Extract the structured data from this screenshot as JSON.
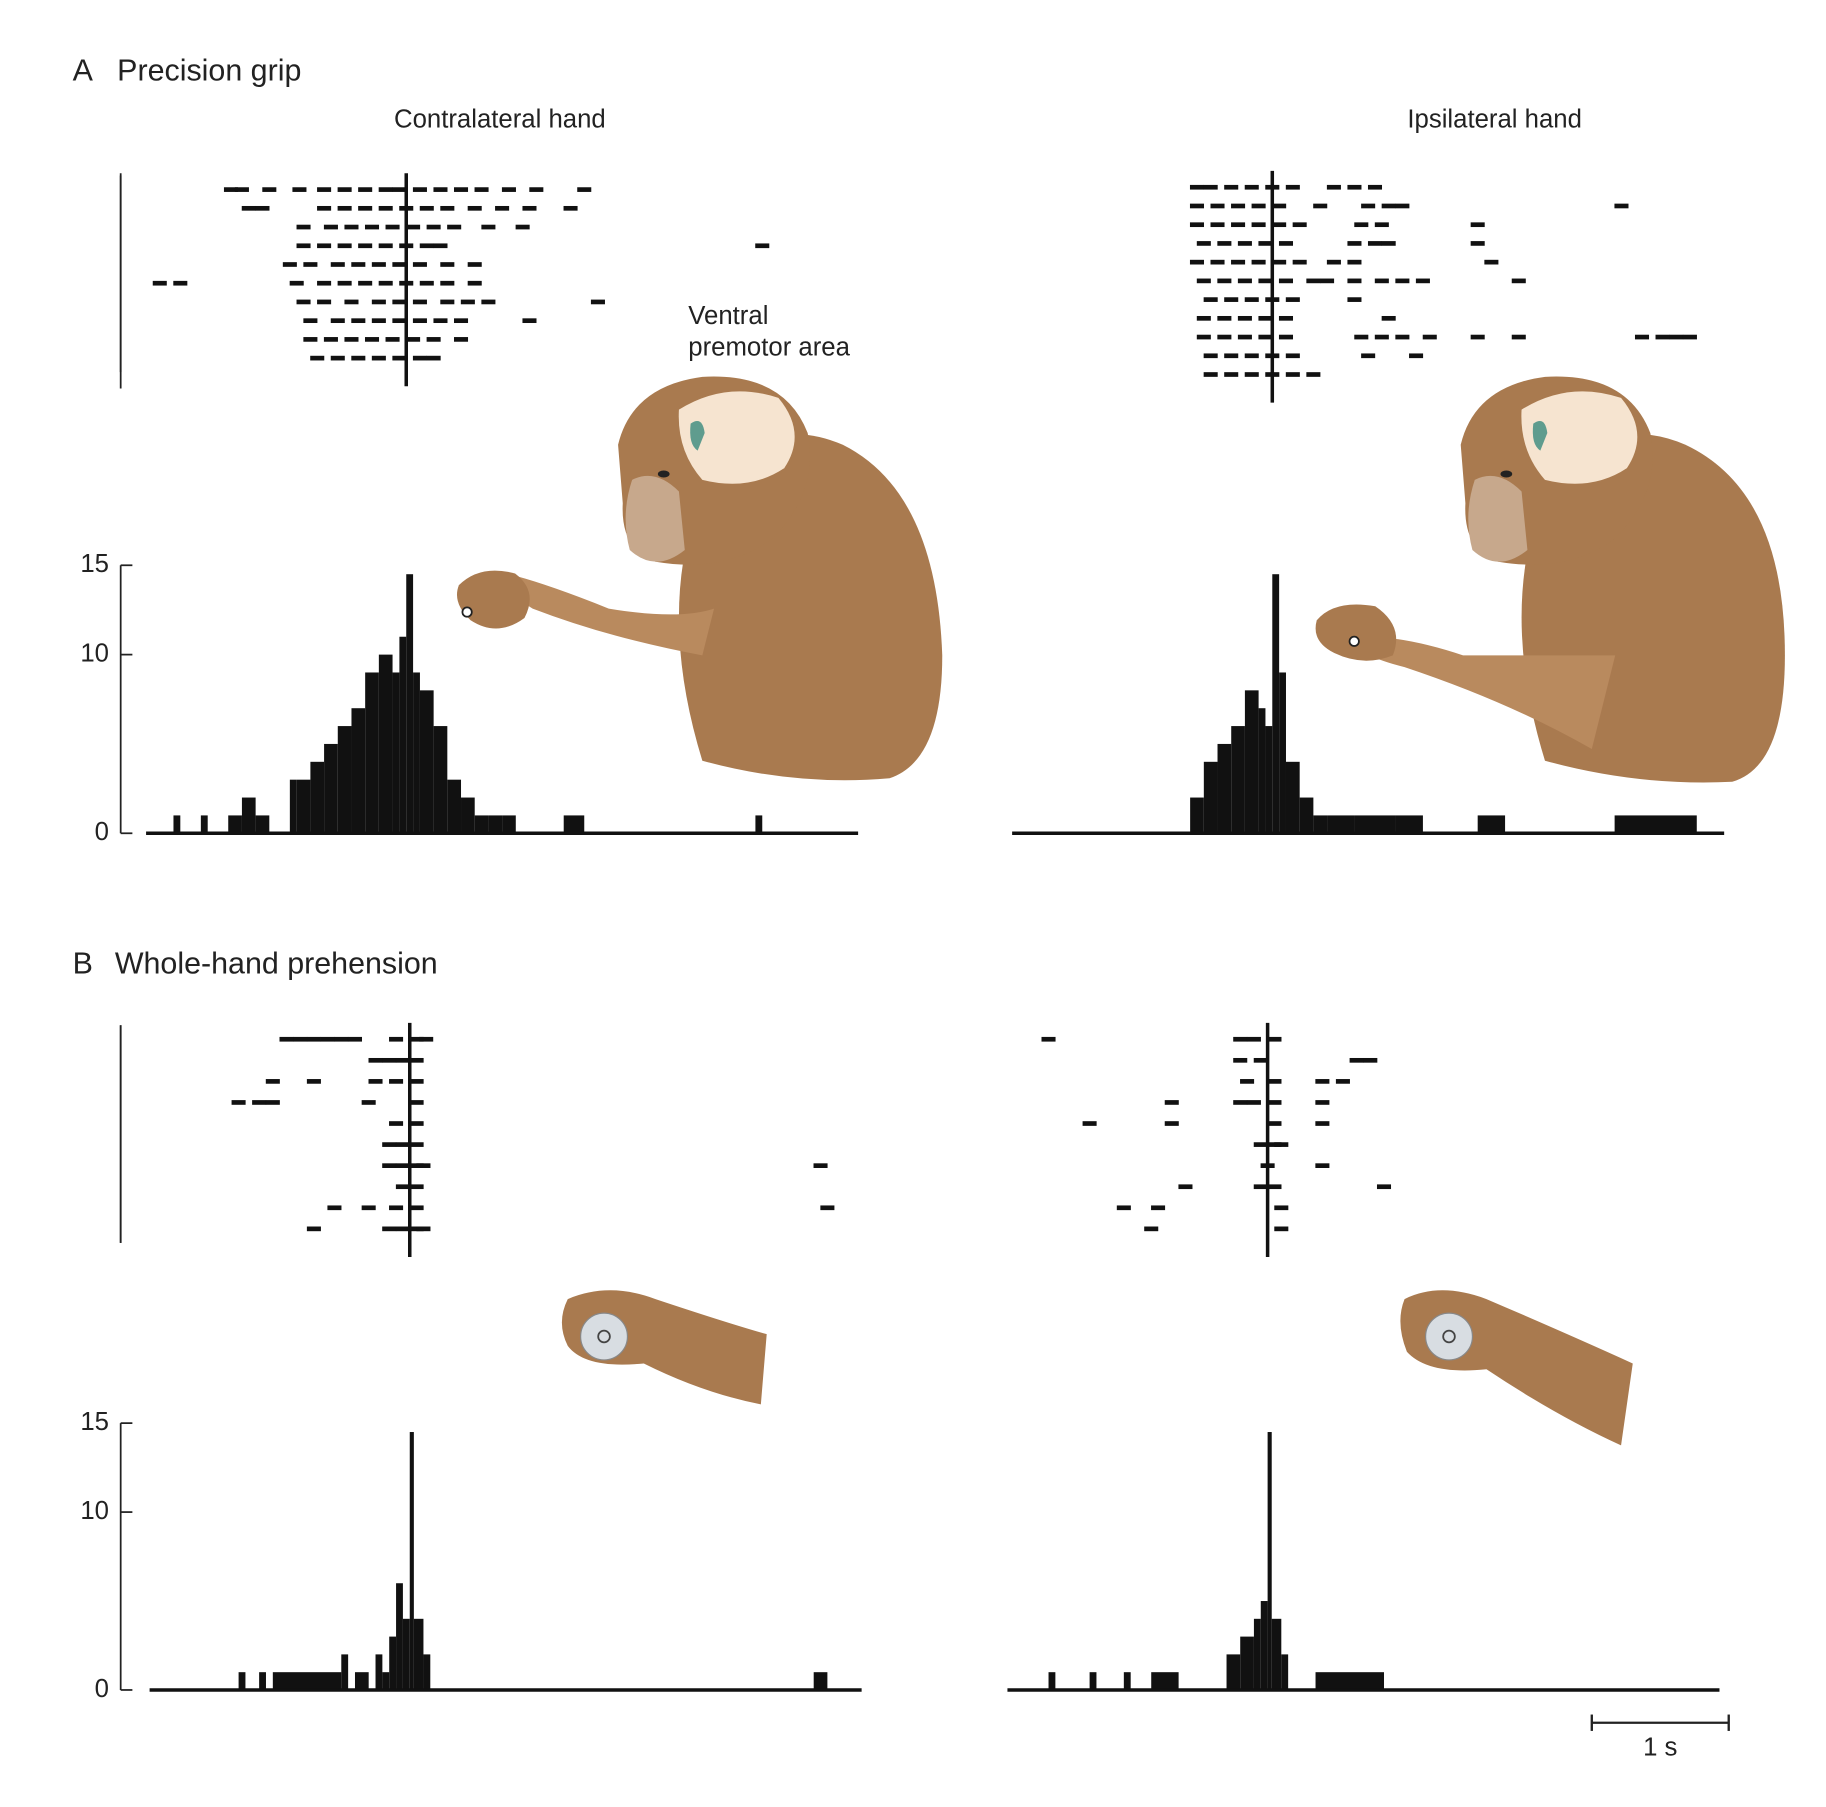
{
  "panels": [
    {
      "label": "A",
      "title": "Precision grip"
    },
    {
      "label": "B",
      "title": "Whole-hand prehension"
    }
  ],
  "columns": [
    "Contralateral hand",
    "Ipsilateral hand"
  ],
  "annotation": [
    "Ventral",
    "premotor area"
  ],
  "scale_bar": {
    "value": 1,
    "label": "1 s"
  },
  "chart_data": [
    {
      "type": "histogram",
      "color": "#111",
      "xlim": [
        -1.9,
        3.3
      ],
      "ylim": [
        0,
        15
      ],
      "yticks": [
        0,
        10,
        15
      ],
      "bins": [
        -1.9,
        -1.7,
        -1.65,
        -1.5,
        -1.45,
        -1.3,
        -1.2,
        -1.1,
        -1.0,
        -0.85,
        -0.8,
        -0.7,
        -0.6,
        -0.5,
        -0.4,
        -0.3,
        -0.2,
        -0.1,
        -0.05,
        0,
        0.05,
        0.1,
        0.2,
        0.3,
        0.4,
        0.5,
        0.6,
        0.7,
        0.8,
        0.9,
        1.0,
        1.15,
        1.3,
        1.4,
        2.55,
        2.6,
        3.3
      ],
      "values": [
        0,
        1,
        0,
        1,
        0,
        1,
        2,
        1,
        0,
        3,
        3,
        4,
        5,
        6,
        7,
        9,
        10,
        9,
        11,
        14.5,
        9,
        8,
        6,
        3,
        2,
        1,
        1,
        1,
        0,
        0,
        0,
        1,
        0,
        0,
        1,
        0
      ],
      "raster": [
        [
          -1.28,
          -1.2,
          -1.0,
          -0.78,
          -0.6,
          -0.45,
          -0.3,
          -0.15,
          -0.05,
          0.1,
          0.25,
          0.4,
          0.55,
          0.75,
          0.95,
          1.3
        ],
        [
          -1.15,
          -1.05,
          -0.6,
          -0.45,
          -0.3,
          -0.15,
          0,
          0.15,
          0.3,
          0.5,
          0.7,
          0.9,
          1.2
        ],
        [
          -0.75,
          -0.55,
          -0.4,
          -0.25,
          -0.1,
          0.05,
          0.2,
          0.35,
          0.6,
          0.85
        ],
        [
          -0.75,
          -0.6,
          -0.45,
          -0.3,
          -0.15,
          0,
          0.15,
          0.25,
          2.6
        ],
        [
          -0.85,
          -0.7,
          -0.5,
          -0.35,
          -0.2,
          -0.05,
          0.1,
          0.3,
          0.5
        ],
        [
          -1.8,
          -1.65,
          -0.8,
          -0.6,
          -0.45,
          -0.3,
          -0.15,
          0,
          0.15,
          0.3,
          0.5
        ],
        [
          -0.75,
          -0.6,
          -0.4,
          -0.2,
          -0.05,
          0.1,
          0.3,
          0.45,
          0.6,
          1.4
        ],
        [
          -0.7,
          -0.5,
          -0.35,
          -0.2,
          -0.05,
          0.1,
          0.25,
          0.4,
          0.9
        ],
        [
          -0.7,
          -0.55,
          -0.4,
          -0.25,
          -0.1,
          0.05,
          0.2,
          0.4
        ],
        [
          -0.65,
          -0.5,
          -0.35,
          -0.2,
          -0.05,
          0.1,
          0.2
        ]
      ]
    },
    {
      "type": "histogram",
      "color": "#111",
      "xlim": [
        -1.9,
        3.3
      ],
      "ylim": [
        0,
        15
      ],
      "bins": [
        -1.9,
        -0.6,
        -0.5,
        -0.4,
        -0.3,
        -0.2,
        -0.1,
        -0.05,
        0,
        0.05,
        0.1,
        0.2,
        0.3,
        0.4,
        0.6,
        0.9,
        1.1,
        1.5,
        1.7,
        2.5,
        3.1,
        3.3
      ],
      "values": [
        0,
        2,
        4,
        5,
        6,
        8,
        7,
        6,
        14.5,
        9,
        4,
        2,
        1,
        1,
        1,
        1,
        0,
        1,
        0,
        1,
        0
      ],
      "raster": [
        [
          -0.55,
          -0.45,
          -0.3,
          -0.15,
          0,
          0.15,
          0.45,
          0.6,
          0.75
        ],
        [
          -0.55,
          -0.4,
          -0.25,
          -0.1,
          0.05,
          0.35,
          0.7,
          0.85,
          0.95,
          2.55
        ],
        [
          -0.55,
          -0.4,
          -0.25,
          -0.1,
          0.05,
          0.2,
          0.65,
          0.8,
          1.5
        ],
        [
          -0.5,
          -0.35,
          -0.2,
          -0.05,
          0.1,
          0.6,
          0.75,
          0.85,
          1.5
        ],
        [
          -0.55,
          -0.4,
          -0.25,
          -0.1,
          0.05,
          0.2,
          0.45,
          0.6,
          1.6
        ],
        [
          -0.5,
          -0.35,
          -0.2,
          -0.05,
          0.1,
          0.3,
          0.4,
          0.6,
          0.8,
          0.95,
          1.1,
          1.8
        ],
        [
          -0.45,
          -0.3,
          -0.15,
          0,
          0.15,
          0.6
        ],
        [
          -0.5,
          -0.35,
          -0.2,
          -0.05,
          0.1,
          0.85
        ],
        [
          -0.5,
          -0.35,
          -0.2,
          -0.05,
          0.1,
          0.65,
          0.8,
          0.95,
          1.15,
          1.5,
          1.8,
          2.7,
          2.85,
          2.95,
          3.05
        ],
        [
          -0.45,
          -0.3,
          -0.15,
          0,
          0.15,
          0.7,
          1.05
        ],
        [
          -0.45,
          -0.3,
          -0.15,
          0,
          0.15,
          0.3
        ]
      ]
    },
    {
      "type": "histogram",
      "color": "#111",
      "xlim": [
        -1.9,
        3.3
      ],
      "ylim": [
        0,
        15
      ],
      "yticks": [
        0,
        10,
        15
      ],
      "bins": [
        -1.9,
        -1.25,
        -1.2,
        -1.1,
        -1.05,
        -1.0,
        -0.5,
        -0.45,
        -0.4,
        -0.3,
        -0.25,
        -0.2,
        -0.15,
        -0.1,
        -0.05,
        0,
        0.03,
        0.1,
        0.15,
        2.95,
        3.05,
        3.3
      ],
      "values": [
        0,
        1,
        0,
        1,
        0,
        1,
        2,
        0,
        1,
        0,
        2,
        1,
        3,
        6,
        4,
        14.5,
        4,
        2,
        0,
        1,
        0
      ],
      "raster": [
        [
          -0.9,
          -0.8,
          -0.7,
          -0.6,
          -0.5,
          -0.4,
          -0.1,
          0.05,
          0.12
        ],
        [
          -0.25,
          -0.15,
          -0.05,
          0.05
        ],
        [
          -1.0,
          -0.7,
          -0.25,
          -0.1,
          0.05
        ],
        [
          -1.25,
          -1.1,
          -1.0,
          -0.3,
          0.05
        ],
        [
          -0.1,
          0.05
        ],
        [
          -0.15,
          -0.05,
          0.05
        ],
        [
          -0.15,
          -0.05,
          0.05,
          0.1,
          3.0
        ],
        [
          -0.05,
          0.05
        ],
        [
          -0.55,
          -0.3,
          -0.1,
          0.05,
          3.05
        ],
        [
          -0.7,
          -0.15,
          -0.05,
          0.05,
          0.1
        ]
      ]
    },
    {
      "type": "histogram",
      "color": "#111",
      "xlim": [
        -1.9,
        3.3
      ],
      "ylim": [
        0,
        15
      ],
      "bins": [
        -1.9,
        -1.6,
        -1.55,
        -1.3,
        -1.25,
        -1.05,
        -1.0,
        -0.85,
        -0.65,
        -0.3,
        -0.2,
        -0.1,
        -0.05,
        0,
        0.03,
        0.1,
        0.15,
        0.35,
        0.85,
        3.3
      ],
      "values": [
        0,
        1,
        0,
        1,
        0,
        1,
        0,
        1,
        0,
        2,
        3,
        4,
        5,
        14.5,
        4,
        2,
        0,
        1,
        0
      ],
      "raster": [
        [
          -1.6,
          -0.2,
          -0.1,
          0.05
        ],
        [
          -0.2,
          -0.05,
          0.65,
          0.75
        ],
        [
          -0.15,
          0.05,
          0.4,
          0.55
        ],
        [
          -0.7,
          -0.2,
          -0.1,
          0.05,
          0.4
        ],
        [
          -1.3,
          -0.7,
          0.05,
          0.4
        ],
        [
          -0.05,
          0.05,
          0.1
        ],
        [
          0,
          0.4
        ],
        [
          -0.6,
          -0.05,
          0.05,
          0.85
        ],
        [
          -1.05,
          -0.8,
          0.1
        ],
        [
          -0.85,
          0.1
        ]
      ]
    }
  ]
}
